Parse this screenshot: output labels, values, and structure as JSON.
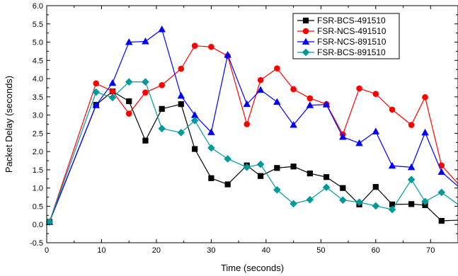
{
  "chart_data": {
    "type": "line",
    "xlabel": "Time (seconds)",
    "ylabel": "Packet Delay (seconds)",
    "xlim": [
      0,
      75
    ],
    "ylim": [
      -0.5,
      6.0
    ],
    "xticks": [
      0,
      10,
      20,
      30,
      40,
      50,
      60,
      70
    ],
    "yticks": [
      -0.5,
      0.0,
      0.5,
      1.0,
      1.5,
      2.0,
      2.5,
      3.0,
      3.5,
      4.0,
      4.5,
      5.0,
      5.5,
      6.0
    ],
    "ytick_labels": [
      "-0.5",
      "0.0",
      "0.5",
      "1.0",
      "1.5",
      "2.0",
      "2.5",
      "3.0",
      "3.5",
      "4.0",
      "4.5",
      "5.0",
      "5.5",
      "6.0"
    ],
    "legend_position": "top-right",
    "grid": false,
    "series": [
      {
        "name": "FSR-BCS-491510",
        "color": "#000000",
        "marker": "square",
        "x": [
          0.5,
          9,
          12,
          15,
          18,
          21,
          24.5,
          27,
          30,
          33,
          36.5,
          39,
          42,
          45,
          48,
          51,
          54,
          57,
          60,
          63,
          66.5,
          69,
          72,
          75
        ],
        "y": [
          0.07,
          3.28,
          3.65,
          3.38,
          2.3,
          3.17,
          3.3,
          2.07,
          1.27,
          1.1,
          1.62,
          1.33,
          1.55,
          1.59,
          1.4,
          1.3,
          1.0,
          0.55,
          1.03,
          0.55,
          0.56,
          0.53,
          0.1,
          0.12
        ]
      },
      {
        "name": "FSR-NCS-491510",
        "color": "#ff0000",
        "marker": "circle",
        "x": [
          0.5,
          9,
          12,
          15,
          18,
          21,
          24.5,
          27,
          30,
          33,
          36.5,
          39,
          42,
          45,
          48,
          51,
          54,
          57,
          60,
          63,
          66.5,
          69,
          72,
          75
        ],
        "y": [
          0.07,
          3.87,
          3.65,
          3.04,
          3.62,
          3.82,
          4.27,
          4.9,
          4.87,
          4.62,
          2.75,
          3.96,
          4.28,
          3.71,
          3.46,
          3.3,
          2.47,
          3.73,
          3.58,
          3.15,
          2.73,
          3.49,
          1.62,
          1.12
        ]
      },
      {
        "name": "FSR-NCS-891510",
        "color": "#0000ff",
        "marker": "triangle",
        "x": [
          0.5,
          9,
          12,
          15,
          18,
          21,
          24.5,
          27,
          30,
          33,
          36.5,
          39,
          42,
          45,
          48,
          51,
          54,
          57,
          60,
          63,
          66.5,
          69,
          72,
          75
        ],
        "y": [
          0.07,
          3.27,
          3.88,
          5.0,
          5.02,
          5.35,
          3.53,
          3.0,
          2.53,
          4.65,
          3.3,
          3.69,
          3.36,
          2.73,
          3.27,
          3.29,
          2.4,
          2.23,
          2.55,
          1.61,
          1.57,
          2.52,
          1.44,
          1.05
        ]
      },
      {
        "name": "FSR-BCS-891510",
        "color": "#009999",
        "marker": "diamond",
        "x": [
          0.5,
          9,
          12,
          15,
          18,
          21,
          24.5,
          27,
          30,
          33,
          36.5,
          39,
          42,
          45,
          48,
          51,
          54,
          57,
          60,
          63,
          66.5,
          69,
          72,
          75
        ],
        "y": [
          0.07,
          3.63,
          3.48,
          3.91,
          3.91,
          2.63,
          2.52,
          2.85,
          2.1,
          1.8,
          1.57,
          1.65,
          0.95,
          0.57,
          0.68,
          1.02,
          0.67,
          0.61,
          0.51,
          0.41,
          1.23,
          0.63,
          0.88,
          0.55
        ]
      }
    ]
  }
}
